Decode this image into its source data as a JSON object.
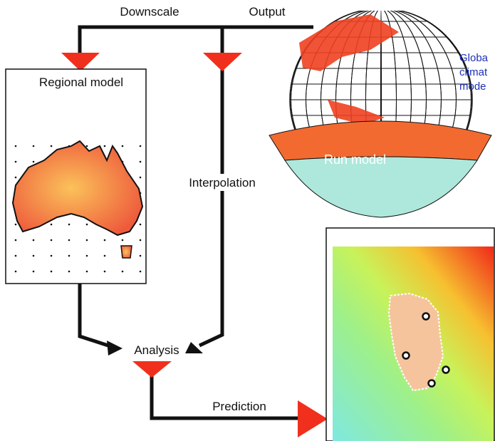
{
  "labels": {
    "downscale": "Downscale",
    "output": "Output",
    "regional_model": "Regional model",
    "global_model": [
      "Globa",
      "climat",
      "mode"
    ],
    "run_model": "Run model",
    "interpolation": "Interpolation",
    "analysis": "Analysis",
    "prediction": "Prediction"
  }
}
